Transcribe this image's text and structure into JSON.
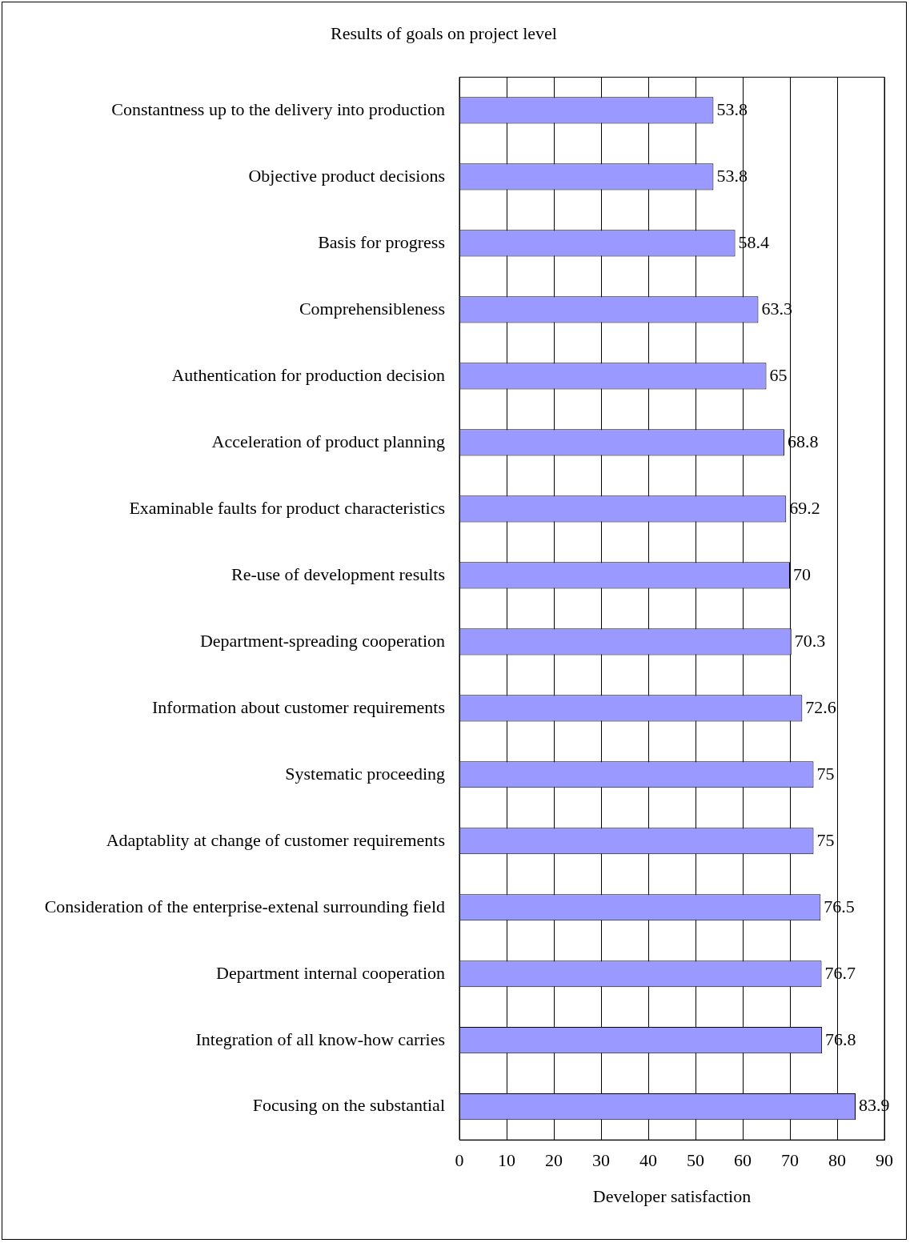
{
  "chart_data": {
    "type": "bar",
    "orientation": "horizontal",
    "title": "Results of goals on project level",
    "xlabel": "Developer satisfaction",
    "categories": [
      "Constantness up to the delivery into production",
      "Objective product decisions",
      "Basis for progress",
      "Comprehensibleness",
      "Authentication for production decision",
      "Acceleration of product planning",
      "Examinable faults for product characteristics",
      "Re-use of development results",
      "Department-spreading cooperation",
      "Information about customer requirements",
      "Systematic proceeding",
      "Adaptablity at change of customer requirements",
      "Consideration of the enterprise-extenal surrounding field",
      "Department internal cooperation",
      "Integration of all know-how carries",
      "Focusing on the substantial"
    ],
    "values": [
      53.8,
      53.8,
      58.4,
      63.3,
      65,
      68.8,
      69.2,
      70,
      70.3,
      72.6,
      75,
      75,
      76.5,
      76.7,
      76.8,
      83.9
    ],
    "color": "#9999ff",
    "xlim": [
      0,
      90
    ],
    "xticks": [
      0,
      10,
      20,
      30,
      40,
      50,
      60,
      70,
      80,
      90
    ],
    "grid": "x",
    "legend": false,
    "data_labels": true
  }
}
